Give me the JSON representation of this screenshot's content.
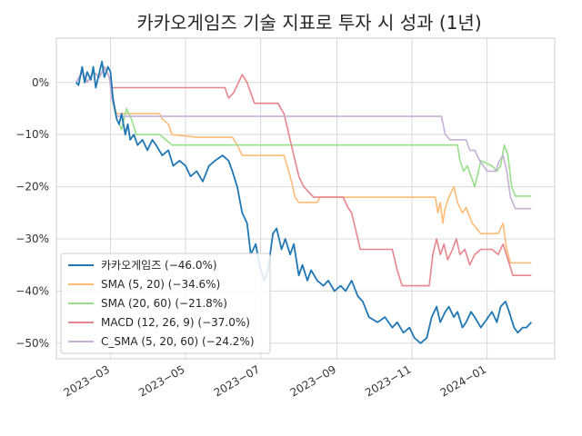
{
  "chart_data": {
    "type": "line",
    "title": "카카오게임즈 기술 지표로 투자 시 성과 (1년)",
    "xlabel": "",
    "ylabel": "",
    "x_range": [
      "2023-01-16",
      "2024-02-25"
    ],
    "ylim": [
      -53,
      8.5
    ],
    "y_ticks": [
      0,
      -10,
      -20,
      -30,
      -40,
      -50
    ],
    "y_tick_labels": [
      "0%",
      "−10%",
      "−20%",
      "−30%",
      "−40%",
      "−50%"
    ],
    "x_ticks": [
      "2023-03-01",
      "2023-05-01",
      "2023-07-01",
      "2023-09-01",
      "2023-11-01",
      "2024-01-01"
    ],
    "x_tick_labels": [
      "2023−03",
      "2023−05",
      "2023−07",
      "2023−09",
      "2023−11",
      "2024−01"
    ],
    "grid": true,
    "legend_position": "lower-left",
    "series": [
      {
        "name": "카카오게임즈 (−46.0%)",
        "color": "#1f77b4",
        "points": [
          [
            "2023-02-01",
            0
          ],
          [
            "2023-02-03",
            -0.5
          ],
          [
            "2023-02-06",
            3
          ],
          [
            "2023-02-08",
            0
          ],
          [
            "2023-02-10",
            2
          ],
          [
            "2023-02-13",
            0.5
          ],
          [
            "2023-02-15",
            3
          ],
          [
            "2023-02-17",
            -1
          ],
          [
            "2023-02-20",
            2
          ],
          [
            "2023-02-22",
            4
          ],
          [
            "2023-02-24",
            1
          ],
          [
            "2023-02-27",
            3
          ],
          [
            "2023-03-01",
            2
          ],
          [
            "2023-03-03",
            -3
          ],
          [
            "2023-03-06",
            -7
          ],
          [
            "2023-03-08",
            -8
          ],
          [
            "2023-03-10",
            -6
          ],
          [
            "2023-03-13",
            -10
          ],
          [
            "2023-03-15",
            -8
          ],
          [
            "2023-03-17",
            -11
          ],
          [
            "2023-03-20",
            -10
          ],
          [
            "2023-03-23",
            -12
          ],
          [
            "2023-03-27",
            -11
          ],
          [
            "2023-03-31",
            -13
          ],
          [
            "2023-04-04",
            -11
          ],
          [
            "2023-04-07",
            -12
          ],
          [
            "2023-04-12",
            -14
          ],
          [
            "2023-04-17",
            -13
          ],
          [
            "2023-04-21",
            -16
          ],
          [
            "2023-04-26",
            -15
          ],
          [
            "2023-05-01",
            -16
          ],
          [
            "2023-05-05",
            -18
          ],
          [
            "2023-05-10",
            -17
          ],
          [
            "2023-05-15",
            -19
          ],
          [
            "2023-05-20",
            -16
          ],
          [
            "2023-05-25",
            -15
          ],
          [
            "2023-05-31",
            -14
          ],
          [
            "2023-06-05",
            -15
          ],
          [
            "2023-06-08",
            -17
          ],
          [
            "2023-06-12",
            -20
          ],
          [
            "2023-06-16",
            -25
          ],
          [
            "2023-06-20",
            -27
          ],
          [
            "2023-06-23",
            -33
          ],
          [
            "2023-06-27",
            -31
          ],
          [
            "2023-06-30",
            -35
          ],
          [
            "2023-07-04",
            -38
          ],
          [
            "2023-07-07",
            -36
          ],
          [
            "2023-07-11",
            -29
          ],
          [
            "2023-07-14",
            -28
          ],
          [
            "2023-07-18",
            -32
          ],
          [
            "2023-07-21",
            -30
          ],
          [
            "2023-07-25",
            -33
          ],
          [
            "2023-07-28",
            -31
          ],
          [
            "2023-08-01",
            -37
          ],
          [
            "2023-08-04",
            -35
          ],
          [
            "2023-08-08",
            -38
          ],
          [
            "2023-08-11",
            -36
          ],
          [
            "2023-08-16",
            -38
          ],
          [
            "2023-08-21",
            -39
          ],
          [
            "2023-08-25",
            -38
          ],
          [
            "2023-08-30",
            -40
          ],
          [
            "2023-09-04",
            -39
          ],
          [
            "2023-09-08",
            -40
          ],
          [
            "2023-09-13",
            -38
          ],
          [
            "2023-09-18",
            -41
          ],
          [
            "2023-09-22",
            -42
          ],
          [
            "2023-09-27",
            -45
          ],
          [
            "2023-10-04",
            -46
          ],
          [
            "2023-10-10",
            -45
          ],
          [
            "2023-10-16",
            -47
          ],
          [
            "2023-10-20",
            -46
          ],
          [
            "2023-10-25",
            -48
          ],
          [
            "2023-10-30",
            -47
          ],
          [
            "2023-11-03",
            -49
          ],
          [
            "2023-11-08",
            -50
          ],
          [
            "2023-11-13",
            -49
          ],
          [
            "2023-11-17",
            -45
          ],
          [
            "2023-11-21",
            -43
          ],
          [
            "2023-11-24",
            -46
          ],
          [
            "2023-11-28",
            -44
          ],
          [
            "2023-12-01",
            -43
          ],
          [
            "2023-12-05",
            -45
          ],
          [
            "2023-12-08",
            -44
          ],
          [
            "2023-12-12",
            -47
          ],
          [
            "2023-12-15",
            -46
          ],
          [
            "2023-12-19",
            -44
          ],
          [
            "2023-12-22",
            -45
          ],
          [
            "2023-12-27",
            -47
          ],
          [
            "2024-01-02",
            -45
          ],
          [
            "2024-01-05",
            -44
          ],
          [
            "2024-01-09",
            -46
          ],
          [
            "2024-01-12",
            -43
          ],
          [
            "2024-01-16",
            -42
          ],
          [
            "2024-01-19",
            -44
          ],
          [
            "2024-01-23",
            -47
          ],
          [
            "2024-01-26",
            -48
          ],
          [
            "2024-01-30",
            -47
          ],
          [
            "2024-02-02",
            -47
          ],
          [
            "2024-02-06",
            -46
          ]
        ]
      },
      {
        "name": "SMA (5, 20) (−34.6%)",
        "color": "#ffbb78",
        "points": [
          [
            "2023-02-01",
            0
          ],
          [
            "2023-02-06",
            2
          ],
          [
            "2023-02-10",
            0
          ],
          [
            "2023-02-15",
            2
          ],
          [
            "2023-02-20",
            1
          ],
          [
            "2023-02-24",
            3
          ],
          [
            "2023-02-28",
            1
          ],
          [
            "2023-03-03",
            -4
          ],
          [
            "2023-03-06",
            -6
          ],
          [
            "2023-03-10",
            -6
          ],
          [
            "2023-03-15",
            -6
          ],
          [
            "2023-03-20",
            -6
          ],
          [
            "2023-04-10",
            -6
          ],
          [
            "2023-04-12",
            -7
          ],
          [
            "2023-04-17",
            -8
          ],
          [
            "2023-04-20",
            -10
          ],
          [
            "2023-05-10",
            -10.5
          ],
          [
            "2023-06-08",
            -10.5
          ],
          [
            "2023-06-12",
            -12
          ],
          [
            "2023-06-16",
            -14
          ],
          [
            "2023-07-20",
            -14
          ],
          [
            "2023-07-25",
            -18
          ],
          [
            "2023-07-29",
            -22
          ],
          [
            "2023-08-01",
            -23
          ],
          [
            "2023-08-16",
            -23
          ],
          [
            "2023-08-18",
            -22
          ],
          [
            "2023-09-20",
            -22
          ],
          [
            "2023-11-20",
            -22
          ],
          [
            "2023-11-22",
            -25
          ],
          [
            "2023-11-24",
            -23
          ],
          [
            "2023-11-26",
            -27
          ],
          [
            "2023-11-28",
            -24
          ],
          [
            "2023-12-01",
            -22
          ],
          [
            "2023-12-05",
            -20
          ],
          [
            "2023-12-08",
            -23
          ],
          [
            "2023-12-12",
            -25
          ],
          [
            "2023-12-15",
            -24
          ],
          [
            "2023-12-20",
            -27
          ],
          [
            "2023-12-27",
            -29
          ],
          [
            "2024-01-05",
            -29
          ],
          [
            "2024-01-10",
            -29
          ],
          [
            "2024-01-14",
            -27
          ],
          [
            "2024-01-17",
            -32
          ],
          [
            "2024-01-20",
            -34.6
          ],
          [
            "2024-02-06",
            -34.6
          ]
        ]
      },
      {
        "name": "SMA (20, 60) (−21.8%)",
        "color": "#98df8a",
        "points": [
          [
            "2023-02-01",
            0
          ],
          [
            "2023-02-06",
            2
          ],
          [
            "2023-02-10",
            0
          ],
          [
            "2023-02-15",
            2
          ],
          [
            "2023-02-20",
            1
          ],
          [
            "2023-02-24",
            3
          ],
          [
            "2023-02-28",
            1
          ],
          [
            "2023-03-03",
            -4
          ],
          [
            "2023-03-06",
            -7
          ],
          [
            "2023-03-10",
            -9
          ],
          [
            "2023-03-14",
            -5
          ],
          [
            "2023-03-18",
            -7
          ],
          [
            "2023-03-22",
            -10
          ],
          [
            "2023-04-05",
            -10
          ],
          [
            "2023-04-10",
            -10
          ],
          [
            "2023-04-15",
            -11
          ],
          [
            "2023-04-20",
            -12
          ],
          [
            "2023-06-10",
            -12
          ],
          [
            "2023-10-01",
            -12
          ],
          [
            "2023-12-08",
            -12
          ],
          [
            "2023-12-10",
            -15
          ],
          [
            "2023-12-13",
            -17
          ],
          [
            "2023-12-16",
            -16
          ],
          [
            "2023-12-19",
            -18
          ],
          [
            "2023-12-22",
            -20
          ],
          [
            "2023-12-27",
            -15
          ],
          [
            "2024-01-05",
            -16
          ],
          [
            "2024-01-09",
            -17
          ],
          [
            "2024-01-12",
            -16
          ],
          [
            "2024-01-15",
            -12
          ],
          [
            "2024-01-18",
            -14
          ],
          [
            "2024-01-21",
            -20
          ],
          [
            "2024-01-24",
            -21.8
          ],
          [
            "2024-02-06",
            -21.8
          ]
        ]
      },
      {
        "name": "MACD (12, 26, 9) (−37.0%)",
        "color": "#e8858c",
        "points": [
          [
            "2023-02-01",
            0
          ],
          [
            "2023-02-06",
            2
          ],
          [
            "2023-02-10",
            0
          ],
          [
            "2023-02-15",
            2
          ],
          [
            "2023-02-20",
            1
          ],
          [
            "2023-02-24",
            3
          ],
          [
            "2023-02-28",
            1
          ],
          [
            "2023-03-02",
            -1
          ],
          [
            "2023-03-06",
            -1
          ],
          [
            "2023-06-02",
            -1
          ],
          [
            "2023-06-05",
            -3
          ],
          [
            "2023-06-09",
            -2
          ],
          [
            "2023-06-13",
            0
          ],
          [
            "2023-06-16",
            1.5
          ],
          [
            "2023-06-20",
            0
          ],
          [
            "2023-06-23",
            -2
          ],
          [
            "2023-06-26",
            -4
          ],
          [
            "2023-07-15",
            -4
          ],
          [
            "2023-07-20",
            -6
          ],
          [
            "2023-07-24",
            -10
          ],
          [
            "2023-07-28",
            -14
          ],
          [
            "2023-08-01",
            -18
          ],
          [
            "2023-08-05",
            -20
          ],
          [
            "2023-08-09",
            -21
          ],
          [
            "2023-08-13",
            -22
          ],
          [
            "2023-09-06",
            -22
          ],
          [
            "2023-09-10",
            -24
          ],
          [
            "2023-09-13",
            -25
          ],
          [
            "2023-09-16",
            -28
          ],
          [
            "2023-09-20",
            -32
          ],
          [
            "2023-10-16",
            -32
          ],
          [
            "2023-10-20",
            -36
          ],
          [
            "2023-10-24",
            -39
          ],
          [
            "2023-11-15",
            -39
          ],
          [
            "2023-11-18",
            -33
          ],
          [
            "2023-11-21",
            -30
          ],
          [
            "2023-11-24",
            -33
          ],
          [
            "2023-11-27",
            -31
          ],
          [
            "2023-11-30",
            -34
          ],
          [
            "2023-12-04",
            -32
          ],
          [
            "2023-12-07",
            -30
          ],
          [
            "2023-12-10",
            -33
          ],
          [
            "2023-12-14",
            -32
          ],
          [
            "2023-12-18",
            -35
          ],
          [
            "2023-12-22",
            -33
          ],
          [
            "2023-12-27",
            -32
          ],
          [
            "2024-01-05",
            -32
          ],
          [
            "2024-01-10",
            -33
          ],
          [
            "2024-01-14",
            -31
          ],
          [
            "2024-01-18",
            -34
          ],
          [
            "2024-01-22",
            -37
          ],
          [
            "2024-02-06",
            -37
          ]
        ]
      },
      {
        "name": "C_SMA (5, 20, 60) (−24.2%)",
        "color": "#c5b0d5",
        "points": [
          [
            "2023-02-01",
            0
          ],
          [
            "2023-02-06",
            2
          ],
          [
            "2023-02-10",
            0
          ],
          [
            "2023-02-15",
            2
          ],
          [
            "2023-02-20",
            1
          ],
          [
            "2023-02-24",
            3
          ],
          [
            "2023-02-28",
            1
          ],
          [
            "2023-03-02",
            -3
          ],
          [
            "2023-03-06",
            -6.5
          ],
          [
            "2023-11-25",
            -6.5
          ],
          [
            "2023-11-28",
            -10
          ],
          [
            "2023-12-02",
            -11
          ],
          [
            "2023-12-15",
            -11
          ],
          [
            "2023-12-18",
            -13
          ],
          [
            "2023-12-22",
            -13
          ],
          [
            "2023-12-26",
            -15
          ],
          [
            "2024-01-01",
            -17
          ],
          [
            "2024-01-08",
            -17
          ],
          [
            "2024-01-11",
            -15
          ],
          [
            "2024-01-14",
            -14
          ],
          [
            "2024-01-17",
            -17
          ],
          [
            "2024-01-20",
            -22
          ],
          [
            "2024-01-24",
            -24.2
          ],
          [
            "2024-02-06",
            -24.2
          ]
        ]
      }
    ]
  }
}
